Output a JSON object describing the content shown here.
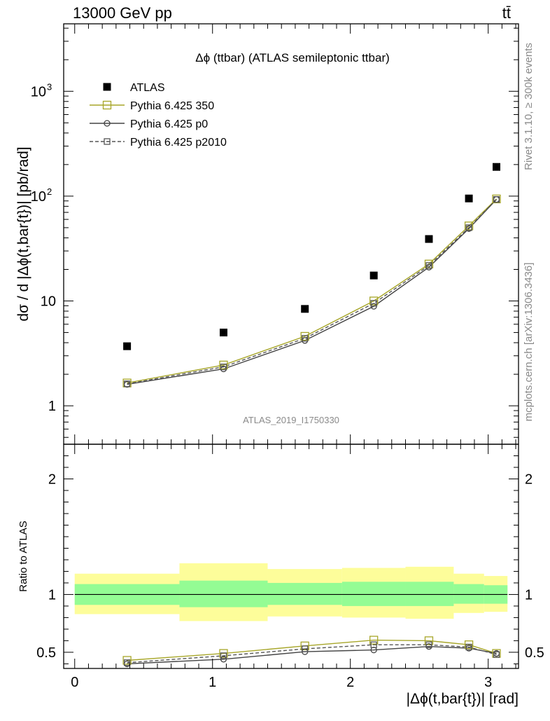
{
  "header": {
    "left": "13000 GeV pp",
    "right": "tt̄"
  },
  "side": {
    "rivet": "Rivet 3.1.10, ≥ 300k events",
    "source": "mcplots.cern.ch [arXiv:1306.3436]"
  },
  "chart_data": {
    "type": "line",
    "title": "Δϕ (ttbar) (ATLAS semileptonic ttbar)",
    "watermark": "ATLAS_2019_I1750330",
    "xlabel": "|Δϕ(t,bar{t})| [rad]",
    "ylabel": "dσ / d |Δϕ(t,bar{t})| [pb/rad]",
    "ratio_ylabel": "Ratio to ATLAS",
    "xlim": [
      -0.08,
      3.22
    ],
    "ylim": [
      0.43,
      4400
    ],
    "yscale": "log",
    "ratio_ylim": [
      0.36,
      2.3
    ],
    "x_ticks": [
      "0",
      "1",
      "2",
      "3"
    ],
    "y_ticks": [
      "1",
      "10"
    ],
    "y_tick_pow": [
      {
        "base": "10",
        "exp": "2"
      },
      {
        "base": "10",
        "exp": "3"
      }
    ],
    "ratio_ticks": [
      "0.5",
      "1",
      "2"
    ],
    "ratio_tick_values": [
      0.5,
      1,
      2
    ],
    "legend_position": "top-left",
    "legend": [
      {
        "label": "ATLAS",
        "style": "data"
      },
      {
        "label": "Pythia 6.425 350",
        "style": "olive"
      },
      {
        "label": "Pythia 6.425 p0",
        "style": "solid"
      },
      {
        "label": "Pythia 6.425 p2010",
        "style": "dashed"
      }
    ],
    "x": [
      0.38,
      1.08,
      1.67,
      2.17,
      2.57,
      2.86,
      3.06
    ],
    "bin_edges": [
      0,
      0.76,
      1.4,
      1.94,
      2.4,
      2.75,
      2.97,
      3.14
    ],
    "band_green": [
      [
        0.91,
        1.09
      ],
      [
        0.89,
        1.12
      ],
      [
        0.91,
        1.1
      ],
      [
        0.9,
        1.11
      ],
      [
        0.9,
        1.11
      ],
      [
        0.92,
        1.09
      ],
      [
        0.92,
        1.08
      ]
    ],
    "band_yellow": [
      [
        0.83,
        1.18
      ],
      [
        0.77,
        1.27
      ],
      [
        0.81,
        1.22
      ],
      [
        0.8,
        1.23
      ],
      [
        0.79,
        1.24
      ],
      [
        0.84,
        1.18
      ],
      [
        0.85,
        1.16
      ]
    ],
    "series": [
      {
        "name": "ATLAS",
        "values": [
          3.7,
          5.0,
          8.4,
          17.5,
          39,
          95,
          190
        ]
      },
      {
        "name": "Pythia 6.425 350",
        "values": [
          1.65,
          2.45,
          4.6,
          10.0,
          22.5,
          52,
          94
        ],
        "ratio": [
          0.43,
          0.49,
          0.555,
          0.605,
          0.6,
          0.565,
          0.49
        ]
      },
      {
        "name": "Pythia 6.425 p0",
        "values": [
          1.6,
          2.25,
          4.2,
          8.9,
          21.0,
          49,
          93
        ],
        "ratio": [
          0.4,
          0.44,
          0.505,
          0.52,
          0.55,
          0.535,
          0.49
        ]
      },
      {
        "name": "Pythia 6.425 p2010",
        "values": [
          1.62,
          2.35,
          4.4,
          9.5,
          21.8,
          50,
          93
        ],
        "ratio": [
          0.41,
          0.47,
          0.53,
          0.565,
          0.565,
          0.545,
          0.48
        ]
      }
    ],
    "colors": {
      "data": "#000000",
      "olive": "#a7a629",
      "solid": "#444444",
      "dashed": "#555555",
      "green_band": "#94fc94",
      "yellow_band": "#fdfd9a"
    }
  }
}
